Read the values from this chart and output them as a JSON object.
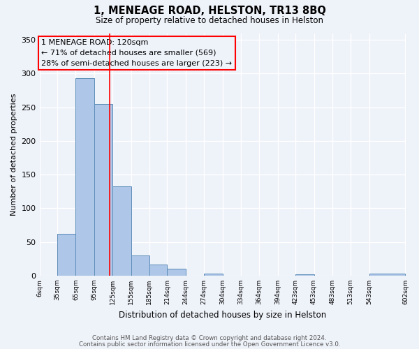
{
  "title": "1, MENEAGE ROAD, HELSTON, TR13 8BQ",
  "subtitle": "Size of property relative to detached houses in Helston",
  "xlabel": "Distribution of detached houses by size in Helston",
  "ylabel": "Number of detached properties",
  "bar_values": [
    0,
    62,
    293,
    255,
    133,
    30,
    17,
    10,
    0,
    3,
    0,
    0,
    0,
    0,
    2,
    0,
    0,
    0,
    3
  ],
  "bin_edges": [
    6,
    35,
    65,
    95,
    125,
    155,
    185,
    214,
    244,
    274,
    304,
    334,
    364,
    394,
    423,
    453,
    483,
    513,
    543,
    602
  ],
  "tick_labels": [
    "6sqm",
    "35sqm",
    "65sqm",
    "95sqm",
    "125sqm",
    "155sqm",
    "185sqm",
    "214sqm",
    "244sqm",
    "274sqm",
    "304sqm",
    "334sqm",
    "364sqm",
    "394sqm",
    "423sqm",
    "453sqm",
    "483sqm",
    "513sqm",
    "543sqm",
    "602sqm"
  ],
  "bar_color": "#aec6e8",
  "bar_edge_color": "#5b8db8",
  "vline_x": 120,
  "vline_color": "red",
  "annotation_title": "1 MENEAGE ROAD: 120sqm",
  "annotation_line1": "← 71% of detached houses are smaller (569)",
  "annotation_line2": "28% of semi-detached houses are larger (223) →",
  "annotation_box_color": "red",
  "ylim": [
    0,
    360
  ],
  "yticks": [
    0,
    50,
    100,
    150,
    200,
    250,
    300,
    350
  ],
  "footer1": "Contains HM Land Registry data © Crown copyright and database right 2024.",
  "footer2": "Contains public sector information licensed under the Open Government Licence v3.0.",
  "background_color": "#eef2f9",
  "grid_color": "#ffffff"
}
